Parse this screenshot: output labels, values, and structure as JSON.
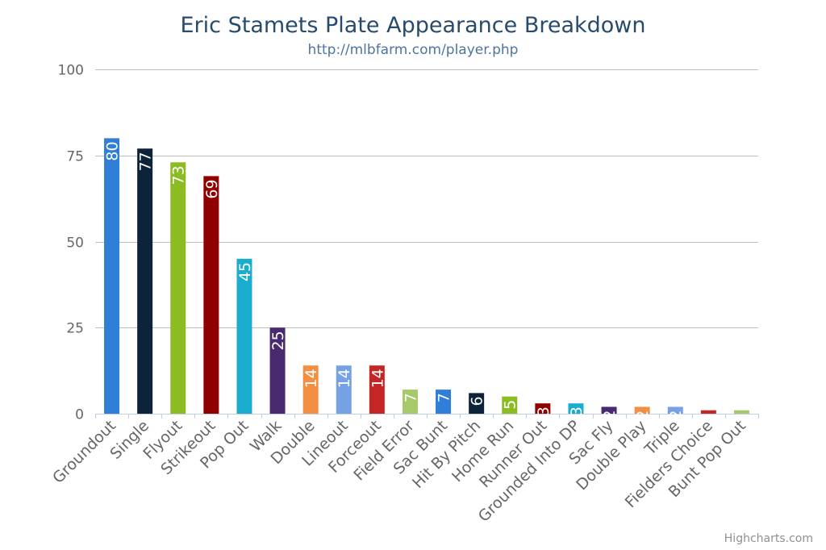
{
  "chart_data": {
    "type": "bar",
    "title": "Eric Stamets Plate Appearance Breakdown",
    "subtitle": "http://mlbfarm.com/player.php",
    "xlabel": "",
    "ylabel": "",
    "ylim": [
      0,
      100
    ],
    "yticks": [
      0,
      25,
      50,
      75,
      100
    ],
    "grid": true,
    "categories": [
      "Groundout",
      "Single",
      "Flyout",
      "Strikeout",
      "Pop Out",
      "Walk",
      "Double",
      "Lineout",
      "Forceout",
      "Field Error",
      "Sac Bunt",
      "Hit By Pitch",
      "Home Run",
      "Runner Out",
      "Grounded Into DP",
      "Sac Fly",
      "Double Play",
      "Triple",
      "Fielders Choice",
      "Bunt Pop Out"
    ],
    "values": [
      80,
      77,
      73,
      69,
      45,
      25,
      14,
      14,
      14,
      7,
      7,
      6,
      5,
      3,
      3,
      2,
      2,
      2,
      1,
      1
    ],
    "colors": [
      "#2f7ed8",
      "#0d233a",
      "#8bbc21",
      "#910000",
      "#1aadce",
      "#492970",
      "#f28f43",
      "#77a1e5",
      "#c42525",
      "#a6c96a",
      "#2f7ed8",
      "#0d233a",
      "#8bbc21",
      "#910000",
      "#1aadce",
      "#492970",
      "#f28f43",
      "#77a1e5",
      "#c42525",
      "#a6c96a"
    ]
  },
  "credits": "Highcharts.com"
}
